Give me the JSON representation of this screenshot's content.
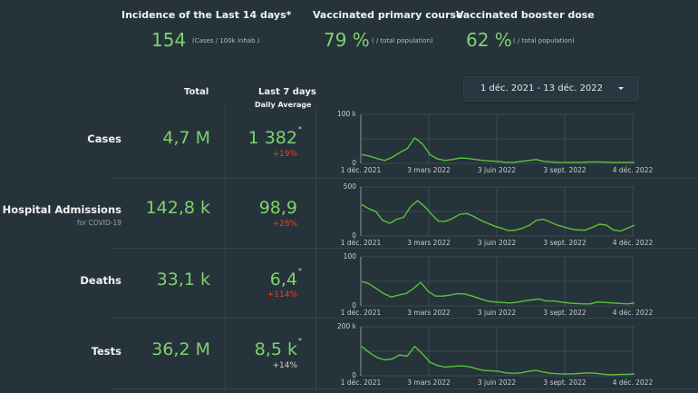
{
  "kpis": [
    {
      "title": "Incidence of the Last 14 days*",
      "value": "154",
      "unit": "(Cases / 100k inhab.)"
    },
    {
      "title": "Vaccinated primary course",
      "value": "79 %",
      "unit": "( / total population)"
    },
    {
      "title": "Vaccinated booster dose",
      "value": "62 %",
      "unit": "( / total population)"
    }
  ],
  "table": {
    "col_total": "Total",
    "col_last7": "Last 7 days",
    "col_last7_sub": "Daily Average",
    "rows": [
      {
        "label": "Cases",
        "sub": "",
        "total": "4,7 M",
        "avg": "1 382",
        "asterisk": "*",
        "delta": "+19%",
        "delta_color": "#e0442a"
      },
      {
        "label": "Hospital Admissions",
        "sub": "for COVID-19",
        "total": "142,8 k",
        "avg": "98,9",
        "asterisk": "",
        "delta": "+28%",
        "delta_color": "#e0442a"
      },
      {
        "label": "Deaths",
        "sub": "",
        "total": "33,1 k",
        "avg": "6,4",
        "asterisk": "*",
        "delta": "+114%",
        "delta_color": "#e0442a"
      },
      {
        "label": "Tests",
        "sub": "",
        "total": "36,2 M",
        "avg": "8,5 k",
        "asterisk": "*",
        "delta": "+14%",
        "delta_color": "#c8ced1"
      }
    ]
  },
  "date_range": {
    "label": "1 déc. 2021 - 13 déc. 2022",
    "icon": "caret-down-icon"
  },
  "colors": {
    "accent": "#7ed36b",
    "line": "#5cc13b",
    "negative": "#e0442a",
    "background": "#26333b"
  },
  "chart_data": [
    {
      "type": "line",
      "title": "Cases",
      "x_ticks": [
        "1 déc. 2021",
        "3 mars 2022",
        "3 juin 2022",
        "3 sept. 2022",
        "4 déc. 2022"
      ],
      "y_ticks": [
        "0",
        "100 k"
      ],
      "ylim": [
        0,
        100000
      ],
      "series": [
        {
          "name": "Cases",
          "values": [
            18000,
            15000,
            10000,
            6000,
            12000,
            22000,
            30000,
            52000,
            40000,
            18000,
            9000,
            6000,
            8000,
            11000,
            10000,
            8000,
            6000,
            5000,
            4000,
            2000,
            2000,
            4000,
            6000,
            8000,
            4000,
            3000,
            2000,
            2000,
            2000,
            2000,
            3000,
            3000,
            2500,
            2000,
            2000,
            2000,
            2000
          ]
        }
      ]
    },
    {
      "type": "line",
      "title": "Hospital Admissions",
      "x_ticks": [
        "1 déc. 2021",
        "3 mars 2022",
        "3 juin 2022",
        "3 sept. 2022",
        "4 déc. 2022"
      ],
      "y_ticks": [
        "0",
        "500"
      ],
      "ylim": [
        0,
        500
      ],
      "series": [
        {
          "name": "Hospital Admissions",
          "values": [
            320,
            280,
            250,
            160,
            130,
            170,
            190,
            300,
            360,
            300,
            220,
            150,
            150,
            180,
            220,
            230,
            200,
            160,
            130,
            100,
            80,
            55,
            60,
            80,
            110,
            160,
            170,
            140,
            110,
            90,
            70,
            60,
            60,
            90,
            120,
            110,
            60,
            50,
            80,
            110
          ]
        }
      ]
    },
    {
      "type": "line",
      "title": "Deaths",
      "x_ticks": [
        "1 déc. 2021",
        "3 mars 2022",
        "3 juin 2022",
        "3 sept. 2022",
        "4 déc. 2022"
      ],
      "y_ticks": [
        "0",
        "100"
      ],
      "ylim": [
        0,
        100
      ],
      "series": [
        {
          "name": "Deaths",
          "values": [
            50,
            45,
            35,
            25,
            18,
            22,
            25,
            35,
            48,
            30,
            20,
            20,
            22,
            25,
            24,
            20,
            15,
            10,
            8,
            7,
            6,
            7,
            10,
            12,
            14,
            10,
            10,
            8,
            6,
            5,
            4,
            4,
            8,
            7,
            6,
            5,
            4,
            6
          ]
        }
      ]
    },
    {
      "type": "line",
      "title": "Tests",
      "x_ticks": [
        "1 déc. 2021",
        "3 mars 2022",
        "3 juin 2022",
        "3 sept. 2022",
        "4 déc. 2022"
      ],
      "y_ticks": [
        "0",
        "200 k"
      ],
      "ylim": [
        0,
        200000
      ],
      "series": [
        {
          "name": "Tests",
          "values": [
            120000,
            95000,
            75000,
            65000,
            68000,
            85000,
            80000,
            120000,
            90000,
            55000,
            42000,
            35000,
            38000,
            40000,
            38000,
            30000,
            22000,
            20000,
            18000,
            12000,
            10000,
            12000,
            18000,
            22000,
            15000,
            10000,
            8000,
            7000,
            8000,
            10000,
            12000,
            10000,
            6000,
            4000,
            5000,
            6000,
            7000
          ]
        }
      ]
    }
  ]
}
